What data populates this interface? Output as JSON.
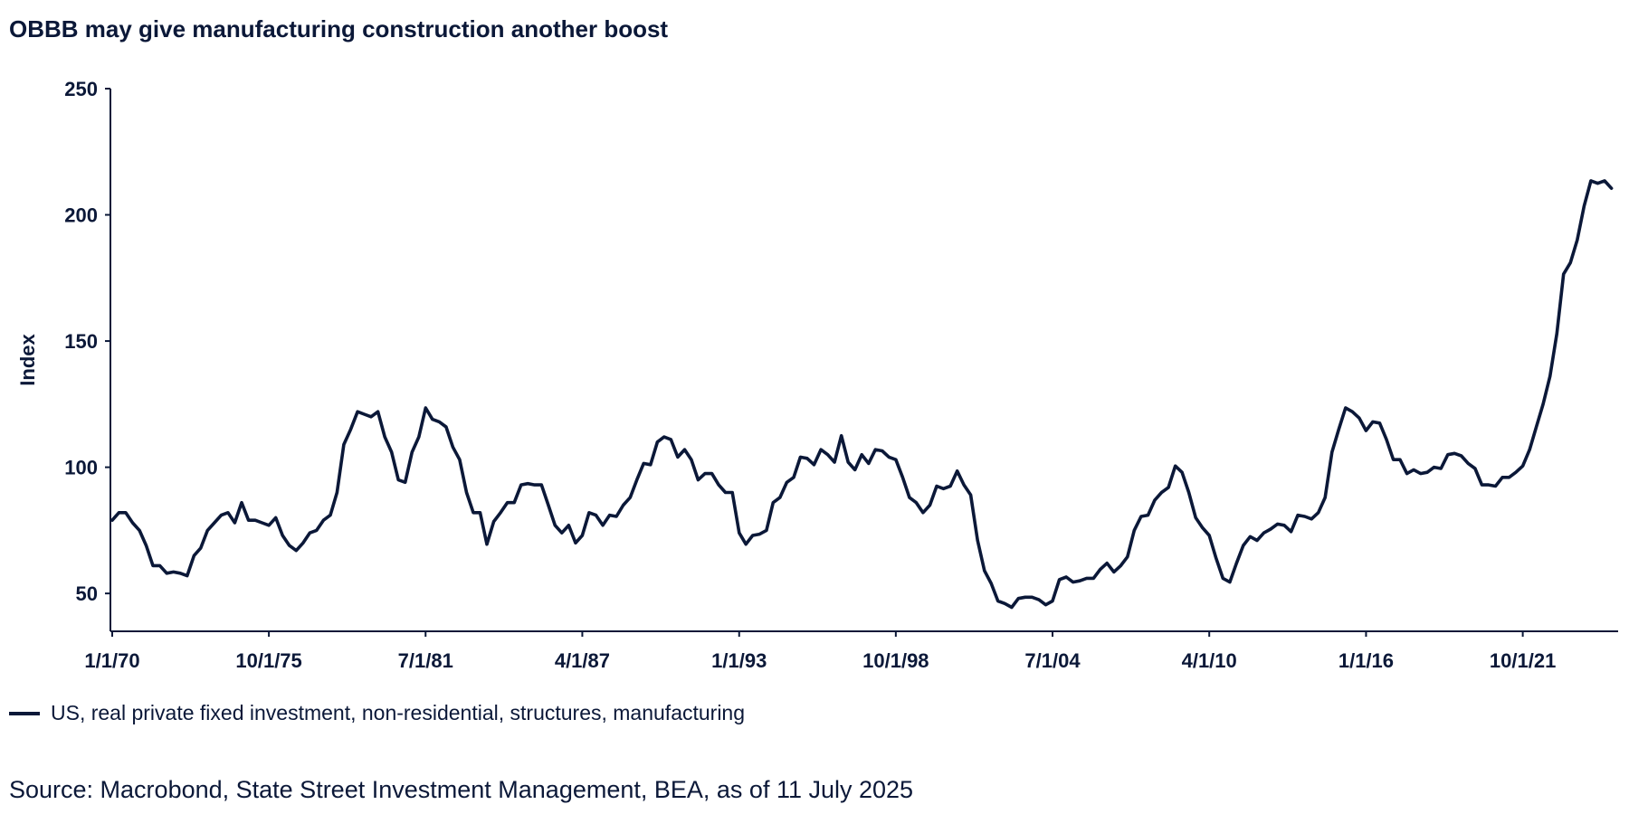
{
  "title": "OBBB may give manufacturing construction another boost",
  "source": "Source: Macrobond, State Street Investment Management, BEA, as of 11 July 2025",
  "colors": {
    "line": "#0b1838",
    "text": "#0b1838",
    "background": "#ffffff"
  },
  "chart_data": {
    "type": "line",
    "title": "OBBB may give manufacturing construction another boost",
    "ylabel": "Index",
    "xlabel": "",
    "ylim": [
      35,
      250
    ],
    "yticks": [
      50,
      100,
      150,
      200,
      250
    ],
    "xlim": [
      "1970-01-01",
      "2025-04-01"
    ],
    "xticks": [
      {
        "date": "1970-01-01",
        "label": "1/1/70"
      },
      {
        "date": "1975-10-01",
        "label": "10/1/75"
      },
      {
        "date": "1981-07-01",
        "label": "7/1/81"
      },
      {
        "date": "1987-04-01",
        "label": "4/1/87"
      },
      {
        "date": "1993-01-01",
        "label": "1/1/93"
      },
      {
        "date": "1998-10-01",
        "label": "10/1/98"
      },
      {
        "date": "2004-07-01",
        "label": "7/1/04"
      },
      {
        "date": "2010-04-01",
        "label": "4/1/10"
      },
      {
        "date": "2016-01-01",
        "label": "1/1/16"
      },
      {
        "date": "2021-10-01",
        "label": "10/1/21"
      }
    ],
    "grid": false,
    "legend_position": "bottom-left",
    "series": [
      {
        "name": "US, real private fixed investment, non-residential, structures, manufacturing",
        "points": [
          [
            "1970-01-01",
            79
          ],
          [
            "1970-04-01",
            82
          ],
          [
            "1970-07-01",
            82
          ],
          [
            "1970-10-01",
            78
          ],
          [
            "1971-01-01",
            75
          ],
          [
            "1971-04-01",
            69
          ],
          [
            "1971-07-01",
            61
          ],
          [
            "1971-10-01",
            61
          ],
          [
            "1972-01-01",
            58
          ],
          [
            "1972-04-01",
            58.5
          ],
          [
            "1972-07-01",
            58
          ],
          [
            "1972-10-01",
            57
          ],
          [
            "1973-01-01",
            65
          ],
          [
            "1973-04-01",
            68
          ],
          [
            "1973-07-01",
            75
          ],
          [
            "1973-10-01",
            78
          ],
          [
            "1974-01-01",
            81
          ],
          [
            "1974-04-01",
            82
          ],
          [
            "1974-07-01",
            78
          ],
          [
            "1974-10-01",
            86
          ],
          [
            "1975-01-01",
            79
          ],
          [
            "1975-04-01",
            79
          ],
          [
            "1975-07-01",
            78
          ],
          [
            "1975-10-01",
            77
          ],
          [
            "1976-01-01",
            80
          ],
          [
            "1976-04-01",
            73
          ],
          [
            "1976-07-01",
            69
          ],
          [
            "1976-10-01",
            67
          ],
          [
            "1977-01-01",
            70
          ],
          [
            "1977-04-01",
            74
          ],
          [
            "1977-07-01",
            75
          ],
          [
            "1977-10-01",
            79
          ],
          [
            "1978-01-01",
            81
          ],
          [
            "1978-04-01",
            90
          ],
          [
            "1978-07-01",
            109
          ],
          [
            "1978-10-01",
            115
          ],
          [
            "1979-01-01",
            122
          ],
          [
            "1979-04-01",
            121
          ],
          [
            "1979-07-01",
            120
          ],
          [
            "1979-10-01",
            122
          ],
          [
            "1980-01-01",
            112
          ],
          [
            "1980-04-01",
            106
          ],
          [
            "1980-07-01",
            95
          ],
          [
            "1980-10-01",
            94
          ],
          [
            "1981-01-01",
            106
          ],
          [
            "1981-04-01",
            112
          ],
          [
            "1981-07-01",
            123.5
          ],
          [
            "1981-10-01",
            119
          ],
          [
            "1982-01-01",
            118
          ],
          [
            "1982-04-01",
            116
          ],
          [
            "1982-07-01",
            108
          ],
          [
            "1982-10-01",
            103
          ],
          [
            "1983-01-01",
            90
          ],
          [
            "1983-04-01",
            82
          ],
          [
            "1983-07-01",
            82
          ],
          [
            "1983-10-01",
            69.5
          ],
          [
            "1984-01-01",
            78.5
          ],
          [
            "1984-04-01",
            82
          ],
          [
            "1984-07-01",
            86
          ],
          [
            "1984-10-01",
            86
          ],
          [
            "1985-01-01",
            93
          ],
          [
            "1985-04-01",
            93.5
          ],
          [
            "1985-07-01",
            93
          ],
          [
            "1985-10-01",
            93
          ],
          [
            "1986-01-01",
            85
          ],
          [
            "1986-04-01",
            77
          ],
          [
            "1986-07-01",
            74
          ],
          [
            "1986-10-01",
            77
          ],
          [
            "1987-01-01",
            70
          ],
          [
            "1987-04-01",
            73
          ],
          [
            "1987-07-01",
            82
          ],
          [
            "1987-10-01",
            81
          ],
          [
            "1988-01-01",
            77
          ],
          [
            "1988-04-01",
            81
          ],
          [
            "1988-07-01",
            80.5
          ],
          [
            "1988-10-01",
            85
          ],
          [
            "1989-01-01",
            88
          ],
          [
            "1989-04-01",
            95
          ],
          [
            "1989-07-01",
            101.5
          ],
          [
            "1989-10-01",
            101
          ],
          [
            "1990-01-01",
            110
          ],
          [
            "1990-04-01",
            112
          ],
          [
            "1990-07-01",
            111
          ],
          [
            "1990-10-01",
            104
          ],
          [
            "1991-01-01",
            107
          ],
          [
            "1991-04-01",
            103
          ],
          [
            "1991-07-01",
            95
          ],
          [
            "1991-10-01",
            97.5
          ],
          [
            "1992-01-01",
            97.5
          ],
          [
            "1992-04-01",
            93
          ],
          [
            "1992-07-01",
            90
          ],
          [
            "1992-10-01",
            90
          ],
          [
            "1993-01-01",
            74
          ],
          [
            "1993-04-01",
            69.5
          ],
          [
            "1993-07-01",
            73
          ],
          [
            "1993-10-01",
            73.5
          ],
          [
            "1994-01-01",
            75
          ],
          [
            "1994-04-01",
            86
          ],
          [
            "1994-07-01",
            88
          ],
          [
            "1994-10-01",
            94
          ],
          [
            "1995-01-01",
            96
          ],
          [
            "1995-04-01",
            104
          ],
          [
            "1995-07-01",
            103.5
          ],
          [
            "1995-10-01",
            101
          ],
          [
            "1996-01-01",
            107
          ],
          [
            "1996-04-01",
            105
          ],
          [
            "1996-07-01",
            102
          ],
          [
            "1996-10-01",
            112.5
          ],
          [
            "1997-01-01",
            102
          ],
          [
            "1997-04-01",
            99
          ],
          [
            "1997-07-01",
            105
          ],
          [
            "1997-10-01",
            101.5
          ],
          [
            "1998-01-01",
            107
          ],
          [
            "1998-04-01",
            106.5
          ],
          [
            "1998-07-01",
            104
          ],
          [
            "1998-10-01",
            103
          ],
          [
            "1999-01-01",
            96
          ],
          [
            "1999-04-01",
            88
          ],
          [
            "1999-07-01",
            86
          ],
          [
            "1999-10-01",
            82
          ],
          [
            "2000-01-01",
            85
          ],
          [
            "2000-04-01",
            92.5
          ],
          [
            "2000-07-01",
            91.5
          ],
          [
            "2000-10-01",
            92.5
          ],
          [
            "2001-01-01",
            98.5
          ],
          [
            "2001-04-01",
            93
          ],
          [
            "2001-07-01",
            89
          ],
          [
            "2001-10-01",
            71
          ],
          [
            "2002-01-01",
            59
          ],
          [
            "2002-04-01",
            54
          ],
          [
            "2002-07-01",
            47
          ],
          [
            "2002-10-01",
            46
          ],
          [
            "2003-01-01",
            44.5
          ],
          [
            "2003-04-01",
            48
          ],
          [
            "2003-07-01",
            48.5
          ],
          [
            "2003-10-01",
            48.5
          ],
          [
            "2004-01-01",
            47.5
          ],
          [
            "2004-04-01",
            45.5
          ],
          [
            "2004-07-01",
            47
          ],
          [
            "2004-10-01",
            55.5
          ],
          [
            "2005-01-01",
            56.5
          ],
          [
            "2005-04-01",
            54.5
          ],
          [
            "2005-07-01",
            55
          ],
          [
            "2005-10-01",
            56
          ],
          [
            "2006-01-01",
            56
          ],
          [
            "2006-04-01",
            59.5
          ],
          [
            "2006-07-01",
            62
          ],
          [
            "2006-10-01",
            58.5
          ],
          [
            "2007-01-01",
            61
          ],
          [
            "2007-04-01",
            64.5
          ],
          [
            "2007-07-01",
            75
          ],
          [
            "2007-10-01",
            80.5
          ],
          [
            "2008-01-01",
            81
          ],
          [
            "2008-04-01",
            87
          ],
          [
            "2008-07-01",
            90
          ],
          [
            "2008-10-01",
            92
          ],
          [
            "2009-01-01",
            100.5
          ],
          [
            "2009-04-01",
            98
          ],
          [
            "2009-07-01",
            90
          ],
          [
            "2009-10-01",
            80
          ],
          [
            "2010-01-01",
            76
          ],
          [
            "2010-04-01",
            73
          ],
          [
            "2010-07-01",
            64
          ],
          [
            "2010-10-01",
            56
          ],
          [
            "2011-01-01",
            54.5
          ],
          [
            "2011-04-01",
            62
          ],
          [
            "2011-07-01",
            69
          ],
          [
            "2011-10-01",
            72.5
          ],
          [
            "2012-01-01",
            71
          ],
          [
            "2012-04-01",
            74
          ],
          [
            "2012-07-01",
            75.5
          ],
          [
            "2012-10-01",
            77.5
          ],
          [
            "2013-01-01",
            77
          ],
          [
            "2013-04-01",
            74.5
          ],
          [
            "2013-07-01",
            81
          ],
          [
            "2013-10-01",
            80.5
          ],
          [
            "2014-01-01",
            79.5
          ],
          [
            "2014-04-01",
            82
          ],
          [
            "2014-07-01",
            88
          ],
          [
            "2014-10-01",
            106
          ],
          [
            "2015-01-01",
            115
          ],
          [
            "2015-04-01",
            123.5
          ],
          [
            "2015-07-01",
            122
          ],
          [
            "2015-10-01",
            119.5
          ],
          [
            "2016-01-01",
            114.5
          ],
          [
            "2016-04-01",
            118
          ],
          [
            "2016-07-01",
            117.5
          ],
          [
            "2016-10-01",
            111
          ],
          [
            "2017-01-01",
            103
          ],
          [
            "2017-04-01",
            103
          ],
          [
            "2017-07-01",
            97.5
          ],
          [
            "2017-10-01",
            99
          ],
          [
            "2018-01-01",
            97.5
          ],
          [
            "2018-04-01",
            98
          ],
          [
            "2018-07-01",
            100
          ],
          [
            "2018-10-01",
            99.5
          ],
          [
            "2019-01-01",
            105
          ],
          [
            "2019-04-01",
            105.5
          ],
          [
            "2019-07-01",
            104.5
          ],
          [
            "2019-10-01",
            101.5
          ],
          [
            "2020-01-01",
            99.5
          ],
          [
            "2020-04-01",
            93
          ],
          [
            "2020-07-01",
            93
          ],
          [
            "2020-10-01",
            92.5
          ],
          [
            "2021-01-01",
            96
          ],
          [
            "2021-04-01",
            96
          ],
          [
            "2021-07-01",
            98
          ],
          [
            "2021-10-01",
            100.5
          ],
          [
            "2022-01-01",
            107
          ],
          [
            "2022-04-01",
            116
          ],
          [
            "2022-07-01",
            125
          ],
          [
            "2022-10-01",
            136
          ],
          [
            "2023-01-01",
            153
          ],
          [
            "2023-04-01",
            176.5
          ],
          [
            "2023-07-01",
            181
          ],
          [
            "2023-10-01",
            190
          ],
          [
            "2024-01-01",
            203.5
          ],
          [
            "2024-04-01",
            213.5
          ],
          [
            "2024-07-01",
            212.5
          ],
          [
            "2024-10-01",
            213.5
          ],
          [
            "2025-01-01",
            210.5
          ]
        ]
      }
    ]
  }
}
